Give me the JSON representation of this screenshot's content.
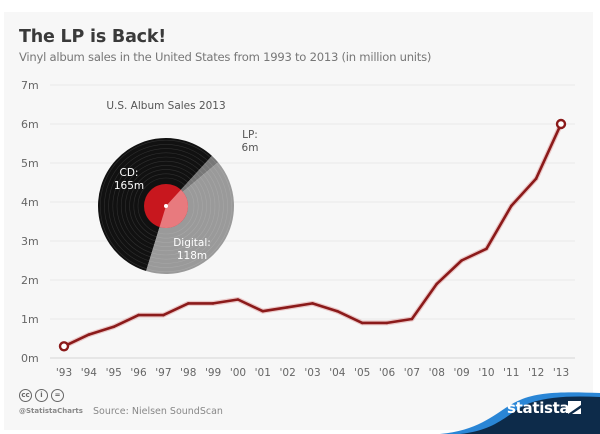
{
  "header": {
    "title": "The LP is Back!",
    "subtitle": "Vinyl album sales in the United States from 1993 to 2013 (in million units)"
  },
  "inset": {
    "title": "U.S. Album Sales 2013",
    "segments": [
      {
        "name": "CD",
        "label_line1": "CD:",
        "label_line2": "165m",
        "value": 165,
        "color": "#111111"
      },
      {
        "name": "LP",
        "label_line1": "LP:",
        "label_line2": "6m",
        "value": 6,
        "color": "#777777"
      },
      {
        "name": "Digital",
        "label_line1": "Digital:",
        "label_line2": "118m",
        "value": 118,
        "color": "#9a9a9a"
      }
    ],
    "label_color": "#c8171e",
    "label_highlight_color": "#e87a7e"
  },
  "chart_data": {
    "type": "line",
    "title": "The LP is Back!",
    "subtitle": "Vinyl album sales in the United States from 1993 to 2013 (in million units)",
    "xlabel": "",
    "ylabel": "",
    "categories": [
      "'93",
      "'94",
      "'95",
      "'96",
      "'97",
      "'98",
      "'99",
      "'00",
      "'01",
      "'02",
      "'03",
      "'04",
      "'05",
      "'06",
      "'07",
      "'08",
      "'09",
      "'10",
      "'11",
      "'12",
      "'13"
    ],
    "series": [
      {
        "name": "Vinyl album sales (million units)",
        "values": [
          0.3,
          0.6,
          0.8,
          1.1,
          1.1,
          1.4,
          1.4,
          1.5,
          1.2,
          1.3,
          1.4,
          1.2,
          0.9,
          0.9,
          1.0,
          1.9,
          2.5,
          2.8,
          3.9,
          4.6,
          6.0
        ],
        "color": "#8b1a1a"
      }
    ],
    "ylim": [
      0,
      7
    ],
    "yticks": [
      0,
      1,
      2,
      3,
      4,
      5,
      6,
      7
    ],
    "ytick_labels": [
      "0m",
      "1m",
      "2m",
      "3m",
      "4m",
      "5m",
      "6m",
      "7m"
    ],
    "grid": true,
    "markers": "first-and-last",
    "legend": "none"
  },
  "footer": {
    "cc_icons": [
      "cc",
      "i",
      "="
    ],
    "handle": "@StatistaCharts",
    "source": "Source: Nielsen SoundScan",
    "brand": "statista",
    "brand_color": "#0d2b4a",
    "wave_color": "#2a86d6"
  }
}
